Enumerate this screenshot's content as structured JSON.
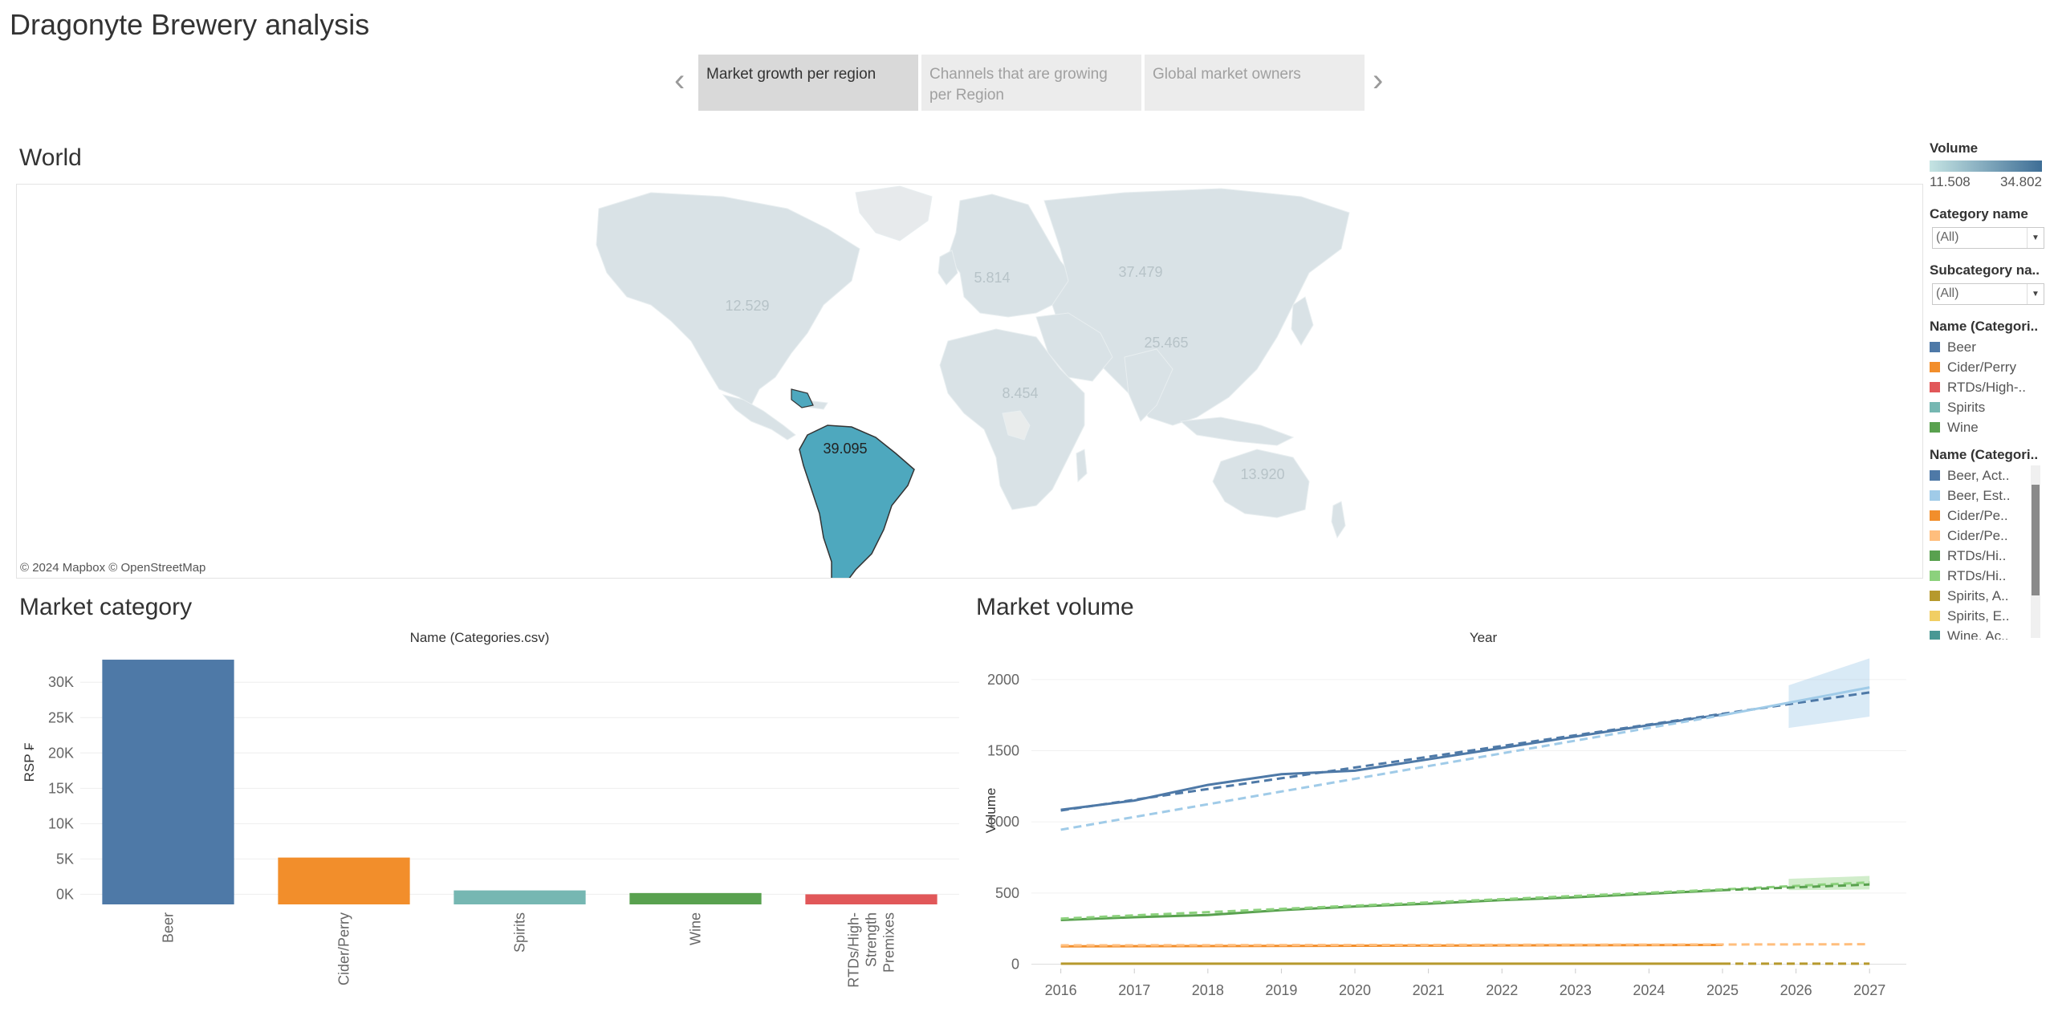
{
  "dashboard": {
    "title": "Dragonyte Brewery analysis"
  },
  "story": {
    "prev_icon": "chevron-left-icon",
    "next_icon": "chevron-right-icon",
    "tabs": [
      {
        "label": "Market growth per region",
        "active": true
      },
      {
        "label": "Channels that are growing per Region",
        "active": false
      },
      {
        "label": "Global market owners",
        "active": false
      }
    ]
  },
  "map": {
    "title": "World",
    "attribution": "© 2024 Mapbox © OpenStreetMap",
    "region_values": {
      "north_america": "12.529",
      "europe": "5.814",
      "russia": "37.479",
      "asia": "25.465",
      "africa": "8.454",
      "south_america": "39.095",
      "oceania": "13.920"
    },
    "highlight_color": "#4ea8be",
    "muted_color": "#d9e2e6"
  },
  "legends": {
    "volume": {
      "title": "Volume",
      "min": "11.508",
      "max": "34.802",
      "color_low": "#c5e4e3",
      "color_high": "#3e6e96"
    },
    "category_filter": {
      "title": "Category name",
      "value": "(All)"
    },
    "subcategory_filter": {
      "title": "Subcategory na..",
      "value": "(All)"
    },
    "categories": {
      "title": "Name (Categori..",
      "items": [
        {
          "label": "Beer",
          "color": "#4e79a7"
        },
        {
          "label": "Cider/Perry",
          "color": "#f28e2b"
        },
        {
          "label": "RTDs/High-..",
          "color": "#e15759"
        },
        {
          "label": "Spirits",
          "color": "#76b7b2"
        },
        {
          "label": "Wine",
          "color": "#59a14f"
        }
      ]
    },
    "series": {
      "title": "Name (Categori..",
      "items": [
        {
          "label": "Beer, Act..",
          "color": "#4e79a7"
        },
        {
          "label": "Beer, Est..",
          "color": "#a0cbe8"
        },
        {
          "label": "Cider/Pe..",
          "color": "#f28e2b"
        },
        {
          "label": "Cider/Pe..",
          "color": "#ffbe7d"
        },
        {
          "label": "RTDs/Hi..",
          "color": "#59a14f"
        },
        {
          "label": "RTDs/Hi..",
          "color": "#8cd17d"
        },
        {
          "label": "Spirits, A..",
          "color": "#b6992d"
        },
        {
          "label": "Spirits, E..",
          "color": "#f1ce63"
        },
        {
          "label": "Wine, Ac..",
          "color": "#499894"
        }
      ]
    }
  },
  "market_category": {
    "title": "Market category",
    "chart_data": {
      "type": "bar",
      "title": "",
      "xlabel": "Name (Categories.csv)",
      "ylabel": "RSP ₣",
      "categories": [
        "Beer",
        "Cider/Perry",
        "Spirits",
        "Wine",
        "RTDs/High-Strength Premixes"
      ],
      "category_lines": [
        [
          "Beer"
        ],
        [
          "Cider/Perry"
        ],
        [
          "Spirits"
        ],
        [
          "Wine"
        ],
        [
          "RTDs/High-",
          "Strength",
          "Premixes"
        ]
      ],
      "values": [
        33200,
        5200,
        550,
        180,
        0
      ],
      "colors": [
        "#4e79a7",
        "#f28e2b",
        "#76b7b2",
        "#59a14f",
        "#e15759"
      ],
      "yticks": [
        0,
        5000,
        10000,
        15000,
        20000,
        25000,
        30000
      ],
      "ytick_labels": [
        "0K",
        "5K",
        "10K",
        "15K",
        "20K",
        "25K",
        "30K"
      ],
      "ylim": [
        -1200,
        34000
      ]
    }
  },
  "market_volume": {
    "title": "Market volume",
    "chart_data": {
      "type": "line",
      "title": "",
      "xlabel": "Year",
      "ylabel": "Volume",
      "x": [
        2016,
        2017,
        2018,
        2019,
        2020,
        2021,
        2022,
        2023,
        2024,
        2025,
        2026,
        2027
      ],
      "xlim": [
        2015.6,
        2027.5
      ],
      "ylim": [
        -20,
        2180
      ],
      "yticks": [
        0,
        500,
        1000,
        1500,
        2000
      ],
      "series": [
        {
          "name": "Beer, Act..",
          "color": "#4e79a7",
          "style": "solid",
          "points": [
            [
              2016,
              1085
            ],
            [
              2017,
              1150
            ],
            [
              2018,
              1260
            ],
            [
              2019,
              1335
            ],
            [
              2020,
              1360
            ],
            [
              2021,
              1440
            ],
            [
              2022,
              1520
            ],
            [
              2023,
              1600
            ],
            [
              2024,
              1680
            ],
            [
              2025,
              1755
            ]
          ]
        },
        {
          "name": "Beer, Act..",
          "color": "#4e79a7",
          "style": "dashed",
          "points": [
            [
              2016,
              1080
            ],
            [
              2025,
              1760
            ],
            [
              2027,
              1910
            ]
          ]
        },
        {
          "name": "Beer, Est..",
          "color": "#a0cbe8",
          "style": "dashed",
          "points": [
            [
              2016,
              945
            ],
            [
              2025,
              1750
            ]
          ]
        },
        {
          "name": "Beer, Est..",
          "color": "#a0cbe8",
          "style": "solid",
          "points": [
            [
              2025,
              1750
            ],
            [
              2027,
              1945
            ]
          ]
        },
        {
          "name": "Wine, Ac..",
          "color": "#59a14f",
          "style": "solid",
          "points": [
            [
              2016,
              310
            ],
            [
              2017,
              330
            ],
            [
              2018,
              345
            ],
            [
              2019,
              380
            ],
            [
              2020,
              405
            ],
            [
              2021,
              425
            ],
            [
              2022,
              450
            ],
            [
              2023,
              470
            ],
            [
              2024,
              495
            ],
            [
              2025,
              520
            ]
          ]
        },
        {
          "name": "RTDs/Hi..",
          "color": "#8cd17d",
          "style": "dashed",
          "points": [
            [
              2016,
              320
            ],
            [
              2025,
              525
            ],
            [
              2027,
              575
            ]
          ]
        },
        {
          "name": "RTDs/Hi..",
          "color": "#59a14f",
          "style": "dashed",
          "points": [
            [
              2025,
              520
            ],
            [
              2027,
              560
            ]
          ]
        },
        {
          "name": "Cider/Pe..",
          "color": "#f28e2b",
          "style": "solid",
          "points": [
            [
              2016,
              125
            ],
            [
              2025,
              135
            ]
          ]
        },
        {
          "name": "Cider/Pe..",
          "color": "#ffbe7d",
          "style": "dashed",
          "points": [
            [
              2016,
              132
            ],
            [
              2025,
              138
            ],
            [
              2027,
              140
            ]
          ]
        },
        {
          "name": "Spirits, A..",
          "color": "#b6992d",
          "style": "solid",
          "points": [
            [
              2016,
              3
            ],
            [
              2025,
              3
            ]
          ]
        },
        {
          "name": "Spirits, E..",
          "color": "#b6992d",
          "style": "dashed",
          "points": [
            [
              2025,
              3
            ],
            [
              2027,
              3
            ]
          ]
        }
      ],
      "bands": [
        {
          "color": "#a0cbe8",
          "opacity": 0.4,
          "upper": [
            [
              2025.9,
              1960
            ],
            [
              2027,
              2150
            ]
          ],
          "lower": [
            [
              2025.9,
              1660
            ],
            [
              2027,
              1740
            ]
          ]
        },
        {
          "color": "#8cd17d",
          "opacity": 0.4,
          "upper": [
            [
              2025.9,
              600
            ],
            [
              2027,
              620
            ]
          ],
          "lower": [
            [
              2025.9,
              520
            ],
            [
              2027,
              525
            ]
          ]
        }
      ]
    }
  }
}
